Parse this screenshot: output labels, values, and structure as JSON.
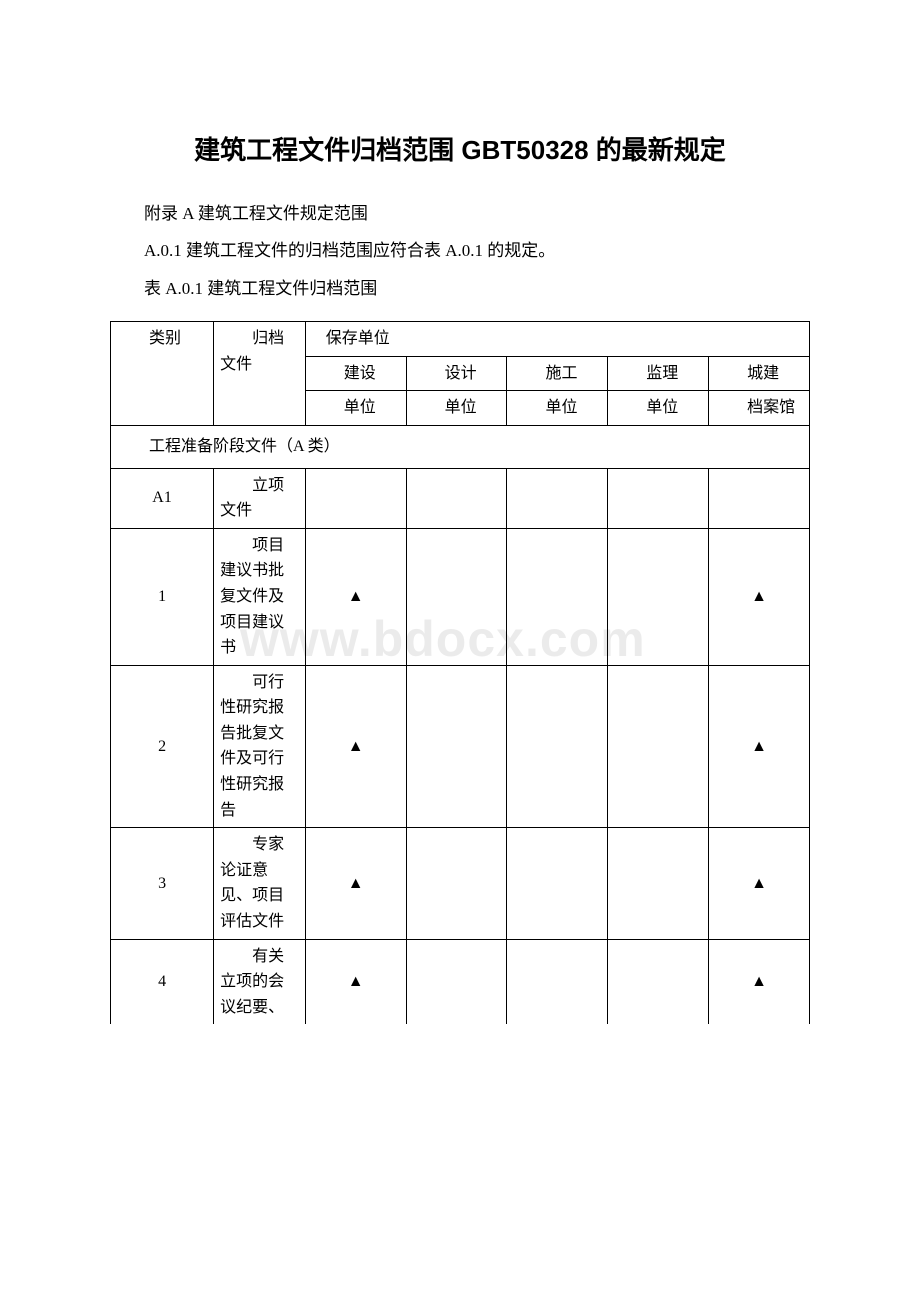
{
  "title": "建筑工程文件归档范围 GBT50328 的最新规定",
  "paragraphs": {
    "p1": "附录 A 建筑工程文件规定范围",
    "p2": "A.0.1 建筑工程文件的归档范围应符合表 A.0.1 的规定。",
    "p3": "表 A.0.1 建筑工程文件归档范围"
  },
  "watermark": "www.bdocx.com",
  "table": {
    "header": {
      "category": "类别",
      "file": "归档文件",
      "storage_group": "保存单位",
      "col1": "建设",
      "col1b": "单位",
      "col2": "设计",
      "col2b": "单位",
      "col3": "施工",
      "col3b": "单位",
      "col4": "监理",
      "col4b": "单位",
      "col5": "城建",
      "col5b": "档案馆"
    },
    "section_title": "工程准备阶段文件（A 类）",
    "rows": [
      {
        "id": "A1",
        "file": "立项文件",
        "c1": "",
        "c2": "",
        "c3": "",
        "c4": "",
        "c5": ""
      },
      {
        "id": "1",
        "file": "项目建议书批复文件及项目建议书",
        "c1": "▲",
        "c2": "",
        "c3": "",
        "c4": "",
        "c5": "▲"
      },
      {
        "id": "2",
        "file": "可行性研究报告批复文件及可行性研究报告",
        "c1": "▲",
        "c2": "",
        "c3": "",
        "c4": "",
        "c5": "▲"
      },
      {
        "id": "3",
        "file": "专家论证意见、项目评估文件",
        "c1": "▲",
        "c2": "",
        "c3": "",
        "c4": "",
        "c5": "▲"
      },
      {
        "id": "4",
        "file": "有关立项的会议纪要、",
        "c1": "▲",
        "c2": "",
        "c3": "",
        "c4": "",
        "c5": "▲"
      }
    ],
    "colors": {
      "border": "#000000",
      "background": "#ffffff",
      "text": "#000000",
      "watermark": "rgba(0,0,0,0.08)"
    },
    "mark_symbol": "▲"
  }
}
